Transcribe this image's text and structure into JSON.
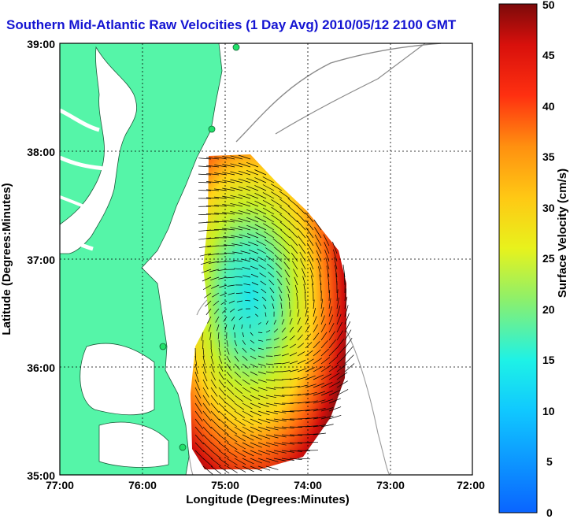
{
  "title": "Southern Mid-Atlantic Raw Velocities (1 Day Avg) 2010/05/12 2100 GMT",
  "xlabel": "Longitude (Degrees:Minutes)",
  "ylabel": "Latitude (Degrees:Minutes)",
  "x_ticks": [
    "77:00",
    "76:00",
    "75:00",
    "74:00",
    "73:00",
    "72:00"
  ],
  "y_ticks": [
    "39:00",
    "38:00",
    "37:00",
    "36:00",
    "35:00"
  ],
  "colorbar": {
    "label": "Surface Velocity (cm/s)",
    "ticks": [
      "50",
      "45",
      "40",
      "35",
      "30",
      "25",
      "20",
      "15",
      "10",
      "5",
      "0"
    ],
    "min": 0,
    "max": 50
  },
  "colors": {
    "land": "#55f5a8",
    "title": "#1414d2",
    "stations": "#22e06a"
  },
  "chart_data": {
    "type": "heatmap",
    "title": "Southern Mid-Atlantic Raw Velocities (1 Day Avg) 2010/05/12 2100 GMT",
    "xlabel": "Longitude (Degrees:Minutes)",
    "ylabel": "Latitude (Degrees:Minutes)",
    "xlim": [
      -77,
      -72
    ],
    "ylim": [
      35,
      39
    ],
    "value_label": "Surface Velocity (cm/s)",
    "value_range": [
      0,
      50
    ],
    "grid": true
  }
}
